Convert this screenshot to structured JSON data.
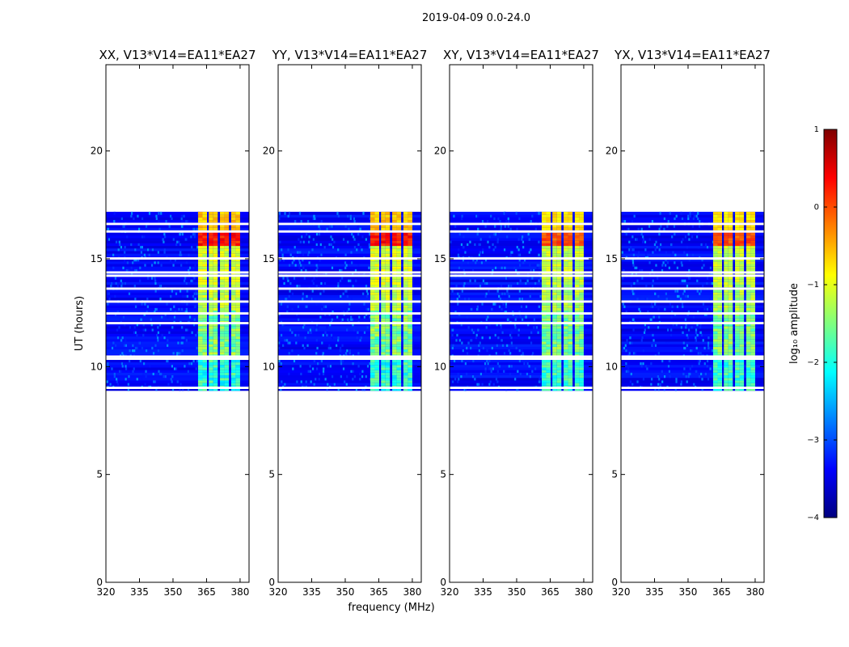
{
  "figure": {
    "suptitle": "2019-04-09 0.0-24.0"
  },
  "chart_data": {
    "type": "heatmap",
    "ylabel": "UT (hours)",
    "xlabel": "frequency (MHz)",
    "xlim": [
      320,
      384
    ],
    "ylim": [
      0,
      24
    ],
    "xticks": [
      320,
      335,
      350,
      365,
      380
    ],
    "yticks": [
      0,
      5,
      10,
      15,
      20
    ],
    "data_time_range": [
      8.9,
      17.1
    ],
    "occupied_band_mhz": [
      361,
      381
    ],
    "band_channels_mhz": [
      [
        361.2,
        364.8
      ],
      [
        366.0,
        369.5
      ],
      [
        371.0,
        374.5
      ],
      [
        376.0,
        379.5
      ]
    ],
    "gap_rows_hours": [
      9.0,
      10.35,
      10.45,
      12.0,
      12.45,
      13.0,
      13.6,
      14.2,
      14.35,
      15.0,
      16.25,
      16.6
    ],
    "panels": [
      {
        "title": "XX, V13*V14=EA11*EA27"
      },
      {
        "title": "YY, V13*V14=EA11*EA27"
      },
      {
        "title": "XY, V13*V14=EA11*EA27"
      },
      {
        "title": "YX, V13*V14=EA11*EA27"
      }
    ],
    "colorbar": {
      "label": "log₁₀ amplitude",
      "min": -4,
      "max": 1,
      "ticks": [
        1,
        0,
        -1,
        -2,
        -3,
        -4
      ],
      "tick_labels": [
        "1",
        "0",
        "−1",
        "−2",
        "−3",
        "−4"
      ],
      "colormap": [
        "#00007f",
        "#0000ff",
        "#007fff",
        "#00ffff",
        "#7fff7f",
        "#ffff00",
        "#ff7f00",
        "#ff0000",
        "#7f0000"
      ]
    }
  }
}
